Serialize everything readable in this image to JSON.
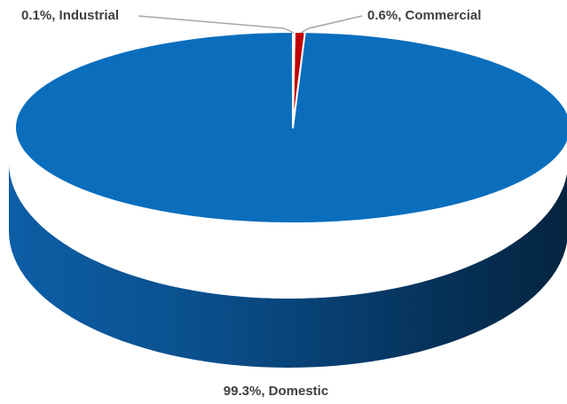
{
  "chart_data": {
    "type": "pie",
    "title": "",
    "style": "3d",
    "categories": [
      "Domestic",
      "Commercial",
      "Industrial"
    ],
    "values": [
      99.3,
      0.6,
      0.1
    ],
    "unit": "%",
    "colors": [
      "#0A6EBD",
      "#C00000",
      "#FFD200"
    ],
    "labels": [
      "99.3%, Domestic",
      "0.6%, Commercial",
      "0.1%, Industrial"
    ],
    "legend": "none"
  }
}
